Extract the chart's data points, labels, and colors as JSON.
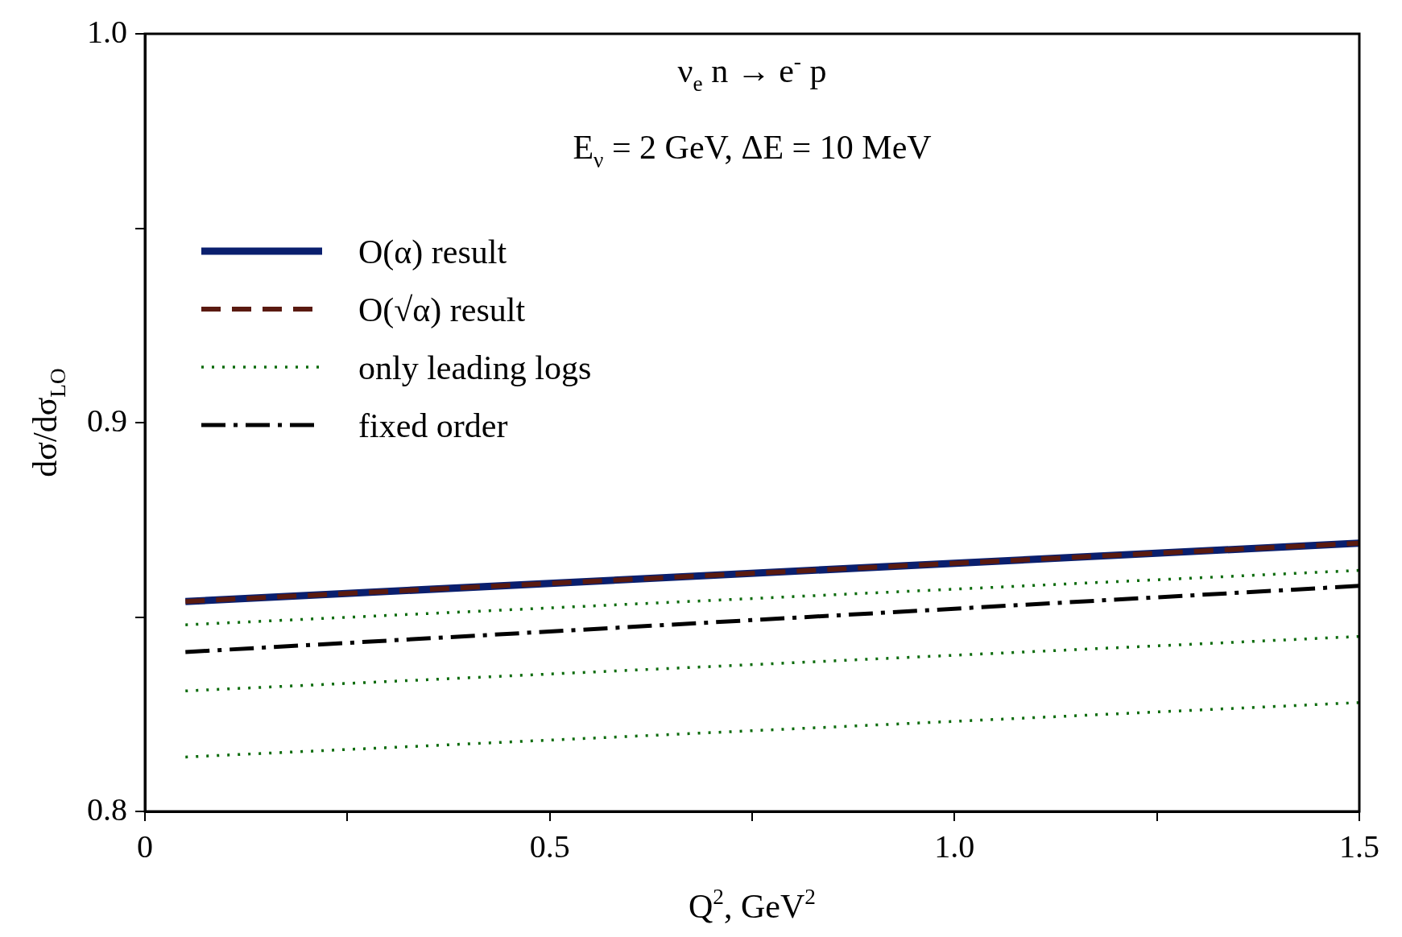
{
  "chart_data": {
    "type": "line",
    "title": "ν$_{e}$ n → e$^{-}$ p",
    "subtitle": "E$_{ν}$ = 2 GeV, ΔE = 10 MeV",
    "xlabel": "Q$^{2}$, GeV$^{2}$",
    "ylabel": "dσ/dσ$_{LO}$",
    "xlim": [
      0,
      1.5
    ],
    "xticks": [
      0,
      {
        "value": 0.25,
        "label": null
      },
      0.5,
      {
        "value": 0.75,
        "label": null
      },
      {
        "value": 1,
        "label": "1.0"
      },
      {
        "value": 1.25,
        "label": null
      },
      1.5
    ],
    "ylim": [
      0.8,
      1.0
    ],
    "yticks": [
      0.8,
      {
        "value": 0.85,
        "label": null
      },
      0.9,
      {
        "value": 0.95,
        "label": null
      },
      {
        "value": 1,
        "label": "1.0"
      }
    ],
    "grid": false,
    "legend": "top left",
    "marker": "none",
    "x": [
      0.05,
      1.5
    ],
    "series": [
      {
        "name": "O(α) result",
        "color": "#0a1f6e",
        "line_style": "solid",
        "values": [
          0.854,
          0.869
        ]
      },
      {
        "name": "O(√α) result",
        "color": "#5a1a10",
        "line_style": "dashed",
        "values": [
          0.854,
          0.869
        ]
      },
      {
        "name": "only leading logs",
        "color": "#0b6b0b",
        "line_style": "dotted",
        "values": [
          0.848,
          0.862
        ]
      },
      {
        "color": "#0b6b0b",
        "line_style": "dotted",
        "values": [
          0.831,
          0.845
        ]
      },
      {
        "color": "#0b6b0b",
        "line_style": "dotted",
        "values": [
          0.814,
          0.828
        ]
      },
      {
        "name": "fixed order",
        "color": "#000000",
        "line_style": "dashdot",
        "values": [
          0.841,
          0.858
        ]
      }
    ]
  }
}
